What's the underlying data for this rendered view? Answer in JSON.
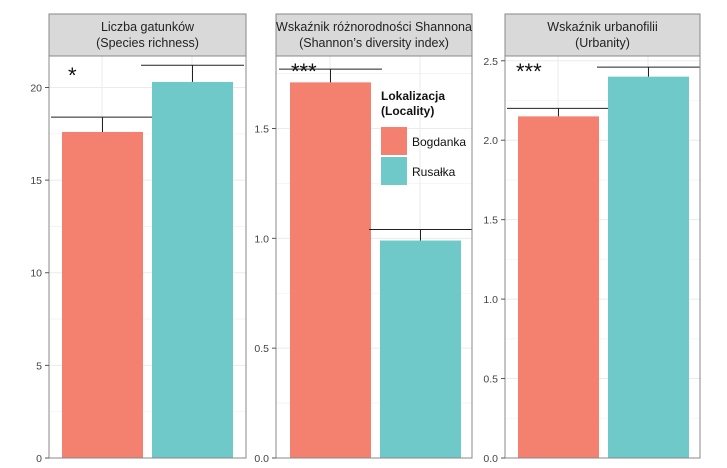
{
  "chart_data": [
    {
      "type": "bar",
      "title": "Liczba gatunków",
      "subtitle": "(Species richness)",
      "categories": [
        "Bogdanka",
        "Rusałka"
      ],
      "values": [
        17.6,
        20.3
      ],
      "error_upper": [
        18.4,
        21.2
      ],
      "ylim": [
        0,
        21.7
      ],
      "yticks": [
        0,
        5,
        10,
        15,
        20
      ],
      "ytick_labels": [
        "0",
        "5",
        "10",
        "15",
        "20"
      ],
      "significance": "*",
      "grid": true
    },
    {
      "type": "bar",
      "title": "Wskaźnik różnorodności Shannona",
      "subtitle": "(Shannon’s diversity index)",
      "categories": [
        "Bogdanka",
        "Rusałka"
      ],
      "values": [
        1.71,
        0.99
      ],
      "error_upper": [
        1.77,
        1.04
      ],
      "ylim": [
        0,
        1.83
      ],
      "yticks": [
        0.0,
        0.5,
        1.0,
        1.5
      ],
      "ytick_labels": [
        "0.0",
        "0.5",
        "1.0",
        "1.5"
      ],
      "significance": "***",
      "grid": true
    },
    {
      "type": "bar",
      "title": "Wskaźnik urbanofilii",
      "subtitle": "(Urbanity)",
      "categories": [
        "Bogdanka",
        "Rusałka"
      ],
      "values": [
        2.15,
        2.4
      ],
      "error_upper": [
        2.2,
        2.46
      ],
      "ylim": [
        0,
        2.53
      ],
      "yticks": [
        0.0,
        0.5,
        1.0,
        1.5,
        2.0,
        2.5
      ],
      "ytick_labels": [
        "0.0",
        "0.5",
        "1.0",
        "1.5",
        "2.0",
        "2.5"
      ],
      "significance": "***",
      "grid": true
    }
  ],
  "legend": {
    "title_line1": "Lokalizacja",
    "title_line2": "(Locality)",
    "placement": "inside-top-right of middle panel",
    "items": [
      {
        "label": "Bogdanka",
        "color": "#f4806f"
      },
      {
        "label": "Rusałka",
        "color": "#6fc9c9"
      }
    ]
  },
  "colors": {
    "bogdanka": "#f4806f",
    "rusalka": "#6fc9c9",
    "strip_background": "#d9d9d9",
    "grid": "#ebebeb",
    "panel_border": "#888888"
  }
}
